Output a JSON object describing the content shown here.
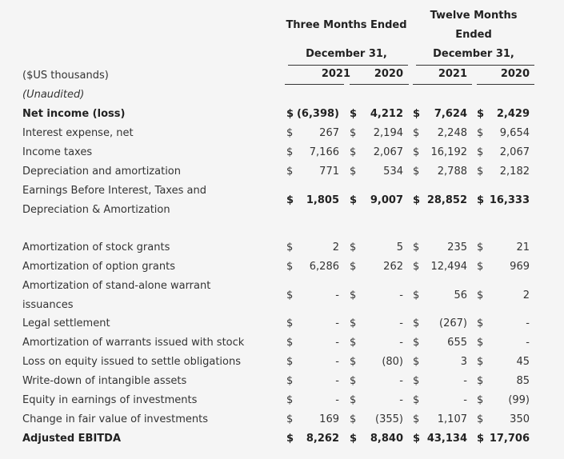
{
  "header": {
    "three_months": "Three Months Ended",
    "twelve_months_1": "Twelve Months",
    "twelve_months_2": "Ended",
    "date_three": "December 31,",
    "date_twelve": "December 31,",
    "years": [
      "2021",
      "2020",
      "2021",
      "2020"
    ]
  },
  "labels": {
    "units": "($US thousands)",
    "unaudited": "(Unaudited)"
  },
  "rows": [
    {
      "label": "Net income (loss)",
      "bold": true,
      "values": [
        "(6,398)",
        "4,212",
        "7,624",
        "2,429"
      ],
      "dollars": [
        "$",
        "$",
        "$",
        "$"
      ]
    },
    {
      "label": "Interest expense, net",
      "values": [
        "267",
        "2,194",
        "2,248",
        "9,654"
      ],
      "dollars": [
        "$",
        "$",
        "$",
        "$"
      ]
    },
    {
      "label": "Income taxes",
      "values": [
        "7,166",
        "2,067",
        "16,192",
        "2,067"
      ],
      "dollars": [
        "$",
        "$",
        "$",
        "$"
      ]
    },
    {
      "label": "Depreciation and amortization",
      "values": [
        "771",
        "534",
        "2,788",
        "2,182"
      ],
      "dollars": [
        "$",
        "$",
        "$",
        "$"
      ]
    },
    {
      "label_1": "Earnings Before Interest, Taxes and",
      "label_2": "Depreciation & Amortization",
      "bold": true,
      "values": [
        "1,805",
        "9,007",
        "28,852",
        "16,333"
      ],
      "dollars": [
        "$",
        "$",
        "$",
        "$"
      ]
    },
    {
      "label": "Amortization of stock grants",
      "values": [
        "2",
        "5",
        "235",
        "21"
      ],
      "dollars": [
        "$",
        "$",
        "$",
        "$"
      ]
    },
    {
      "label": "Amortization of option grants",
      "values": [
        "6,286",
        "262",
        "12,494",
        "969"
      ],
      "dollars": [
        "$",
        "$",
        "$",
        "$"
      ]
    },
    {
      "label_1": "Amortization of stand-alone warrant",
      "label_2": "issuances",
      "values": [
        "-",
        "-",
        "56",
        "2"
      ],
      "dollars": [
        "$",
        "$",
        "$",
        "$"
      ]
    },
    {
      "label": "Legal settlement",
      "values": [
        "-",
        "-",
        "(267)",
        "-"
      ],
      "dollars": [
        "$",
        "$",
        "$",
        "$"
      ]
    },
    {
      "label": "Amortization of warrants issued with stock",
      "values": [
        "-",
        "-",
        "655",
        "-"
      ],
      "dollars": [
        "$",
        "$",
        "$",
        "$"
      ]
    },
    {
      "label": "Loss on equity issued to settle obligations",
      "values": [
        "-",
        "(80)",
        "3",
        "45"
      ],
      "dollars": [
        "$",
        "$",
        "$",
        "$"
      ]
    },
    {
      "label": "Write-down of intangible assets",
      "values": [
        "-",
        "-",
        "-",
        "85"
      ],
      "dollars": [
        "$",
        "$",
        "$",
        "$"
      ]
    },
    {
      "label": "Equity in earnings of investments",
      "values": [
        "-",
        "-",
        "-",
        "(99)"
      ],
      "dollars": [
        "$",
        "$",
        "$",
        "$"
      ]
    },
    {
      "label": "Change in fair value of investments",
      "values": [
        "169",
        "(355)",
        "1,107",
        "350"
      ],
      "dollars": [
        "$",
        "$",
        "$",
        "$"
      ]
    },
    {
      "label": "Adjusted EBITDA",
      "bold": true,
      "values": [
        "8,262",
        "8,840",
        "43,134",
        "17,706"
      ],
      "dollars": [
        "$",
        "$",
        "$",
        "$"
      ]
    }
  ]
}
